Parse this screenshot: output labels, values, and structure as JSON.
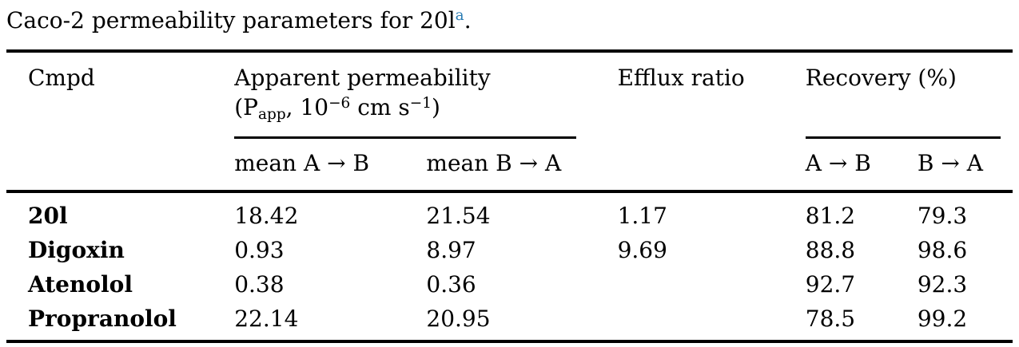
{
  "title": {
    "text": "Caco-2 permeability parameters for 20l",
    "footnote_marker": "a",
    "period": "."
  },
  "colors": {
    "footnote_marker": "#2b7cb3",
    "text": "#000000",
    "rule": "#000000"
  },
  "table": {
    "header": {
      "cmpd": "Cmpd",
      "apparent_permeability": {
        "line1": "Apparent permeability",
        "formula": {
          "open": "(P",
          "sub": "app",
          "after_sub": ", 10",
          "sup1": "−6",
          "units": " cm s",
          "sup2": "−1",
          "close": ")"
        }
      },
      "efflux_ratio": "Efflux ratio",
      "recovery": "Recovery (%)",
      "mean_a_to_b": "mean A → B",
      "mean_b_to_a": "mean B → A",
      "recovery_a_to_b": "A → B",
      "recovery_b_to_a": "B → A"
    },
    "rows": [
      {
        "cmpd": "20l",
        "mean_a_to_b": "18.42",
        "mean_b_to_a": "21.54",
        "efflux": "1.17",
        "recovery_a_to_b": "81.2",
        "recovery_b_to_a": "79.3"
      },
      {
        "cmpd": "Digoxin",
        "mean_a_to_b": "0.93",
        "mean_b_to_a": "8.97",
        "efflux": "9.69",
        "recovery_a_to_b": "88.8",
        "recovery_b_to_a": "98.6"
      },
      {
        "cmpd": "Atenolol",
        "mean_a_to_b": "0.38",
        "mean_b_to_a": "0.36",
        "efflux": "",
        "recovery_a_to_b": "92.7",
        "recovery_b_to_a": "92.3"
      },
      {
        "cmpd": "Propranolol",
        "mean_a_to_b": "22.14",
        "mean_b_to_a": "20.95",
        "efflux": "",
        "recovery_a_to_b": "78.5",
        "recovery_b_to_a": "99.2"
      }
    ]
  }
}
